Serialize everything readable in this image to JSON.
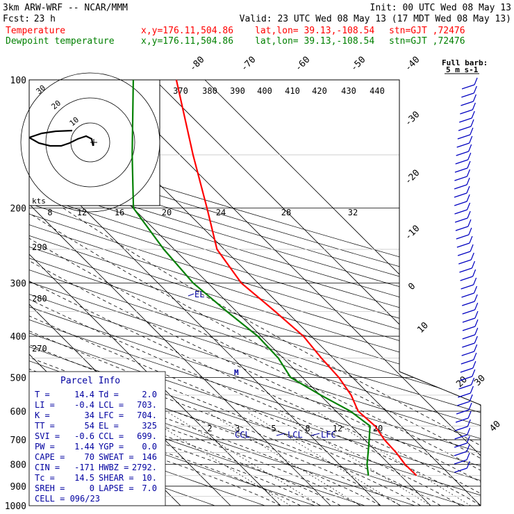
{
  "header": {
    "model": "3km ARW-WRF -- NCAR/MMM",
    "init": "Init: 00 UTC Wed 08 May 13",
    "fcst_label": "Fcst:",
    "fcst_value": "23 h",
    "valid": "Valid: 23 UTC Wed 08 May 13 (17 MDT Wed 08 May 13)"
  },
  "legend": {
    "temperature": {
      "name": "Temperature",
      "xy": "x,y=176.11,504.86",
      "latlon": "lat,lon= 39.13,-108.54",
      "stn": "stn=GJT ,72476",
      "color": "#ff0000"
    },
    "dewpoint": {
      "name": "Dewpoint temperature",
      "xy": "x,y=176.11,504.86",
      "latlon": "lat,lon= 39.13,-108.54",
      "stn": "stn=GJT ,72476",
      "color": "#008000"
    }
  },
  "colors": {
    "temperature": "#ff0000",
    "dewpoint": "#008000",
    "annotation": "#0000a0",
    "barbs": "#0000c0"
  },
  "full_barb": {
    "line1": "Full barb:",
    "line2": "5 m s-1"
  },
  "chart_data": {
    "type": "line",
    "title": "",
    "pressure_levels": [
      "100",
      "200",
      "300",
      "400",
      "500",
      "600",
      "700",
      "800",
      "900",
      "1000"
    ],
    "isotherm_top_labels": [
      "-80",
      "-70",
      "-60",
      "-50",
      "-40"
    ],
    "isotherm_right_labels": [
      "-30",
      "-20",
      "-10",
      "0",
      "10",
      "20",
      "30",
      "40"
    ],
    "theta_e_labels": [
      "370",
      "380",
      "390",
      "400",
      "410",
      "420",
      "430",
      "440"
    ],
    "theta_labels": [
      "290",
      "280",
      "270"
    ],
    "mixing_ratio_labels": [
      "2",
      "3",
      "5",
      "8",
      "12",
      "20"
    ],
    "series": [
      {
        "name": "Temperature",
        "points": [
          [
            100,
            -57
          ],
          [
            150,
            -54
          ],
          [
            200,
            -51
          ],
          [
            250,
            -49
          ],
          [
            300,
            -41
          ],
          [
            350,
            -29
          ],
          [
            400,
            -19
          ],
          [
            450,
            -13
          ],
          [
            500,
            -7
          ],
          [
            550,
            -3
          ],
          [
            600,
            -1
          ],
          [
            650,
            5
          ],
          [
            700,
            8
          ],
          [
            750,
            12
          ],
          [
            800,
            15
          ],
          [
            850,
            19
          ]
        ]
      },
      {
        "name": "Dewpoint temperature",
        "points": [
          [
            100,
            -74
          ],
          [
            150,
            -78
          ],
          [
            200,
            -80
          ],
          [
            250,
            -70
          ],
          [
            300,
            -60
          ],
          [
            350,
            -48
          ],
          [
            400,
            -37
          ],
          [
            450,
            -30
          ],
          [
            500,
            -26
          ],
          [
            550,
            -15
          ],
          [
            600,
            -4
          ],
          [
            650,
            3
          ],
          [
            700,
            2
          ],
          [
            750,
            1
          ],
          [
            800,
            0
          ],
          [
            850,
            0
          ]
        ]
      }
    ],
    "annotations": [
      "EL",
      "CCL",
      "LCL",
      "LFC"
    ],
    "hodograph": {
      "speed_unit": "kts",
      "ring_labels": [
        "10",
        "20",
        "30"
      ],
      "u_axis_labels": [
        "8",
        "12",
        "16",
        "20",
        "24",
        "28",
        "32"
      ]
    }
  },
  "parcel_info": {
    "title": "Parcel Info",
    "rows": [
      [
        {
          "k": "T",
          "v": "14.4"
        },
        {
          "k": "Td",
          "v": "2.0"
        }
      ],
      [
        {
          "k": "LI",
          "v": "-0.4"
        },
        {
          "k": "LCL",
          "v": "703."
        }
      ],
      [
        {
          "k": "K",
          "v": "34"
        },
        {
          "k": "LFC",
          "v": "704."
        }
      ],
      [
        {
          "k": "TT",
          "v": "54"
        },
        {
          "k": "EL",
          "v": "325"
        }
      ],
      [
        {
          "k": "SVI",
          "v": "-0.6"
        },
        {
          "k": "CCL",
          "v": "699."
        }
      ],
      [
        {
          "k": "PW",
          "v": "1.44"
        },
        {
          "k": "YGP",
          "v": "0.0"
        }
      ],
      [
        {
          "k": "CAPE",
          "v": "70"
        },
        {
          "k": "SWEAT",
          "v": "146"
        }
      ],
      [
        {
          "k": "CIN",
          "v": "-171"
        },
        {
          "k": "HWBZ",
          "v": "2792."
        }
      ],
      [
        {
          "k": "Tc",
          "v": "14.5"
        },
        {
          "k": "SHEAR",
          "v": "10."
        }
      ],
      [
        {
          "k": "SREH",
          "v": "0"
        },
        {
          "k": "LAPSE",
          "v": "7.0"
        }
      ]
    ],
    "cell": "CELL = 096/23"
  }
}
